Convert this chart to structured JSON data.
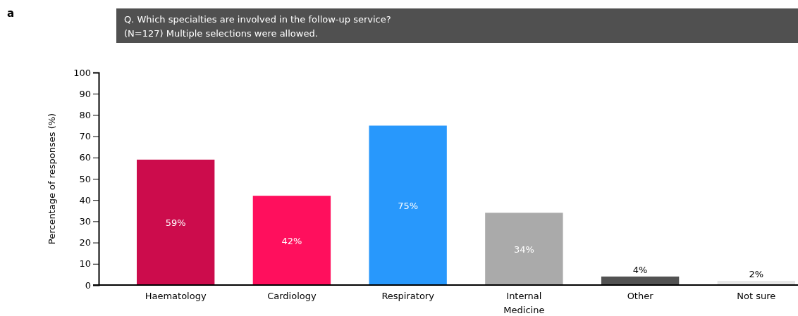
{
  "chart_data": {
    "type": "bar",
    "title": "Q. Which specialties are involved in the follow-up service?",
    "subtitle": "(N=127) Multiple selections were allowed.",
    "ylabel": "Percentage of responses (%)",
    "annotations": [
      "a"
    ],
    "categories": [
      "Haematology",
      "Cardiology",
      "Respiratory",
      "Internal Medicine",
      "Other",
      "Not sure"
    ],
    "values": [
      59,
      42,
      75,
      34,
      4,
      2
    ],
    "colors": [
      "#cc0c4c",
      "#ff0f5d",
      "#2898fc",
      "#aaaaaa",
      "#525252",
      "#e6e6e6"
    ],
    "value_labels": [
      "59%",
      "42%",
      "75%",
      "34%",
      "4%",
      "2%"
    ],
    "ylim": [
      0,
      100
    ],
    "yticks": [
      0,
      10,
      20,
      30,
      40,
      50,
      60,
      70,
      80,
      90,
      100
    ],
    "grid": false
  }
}
